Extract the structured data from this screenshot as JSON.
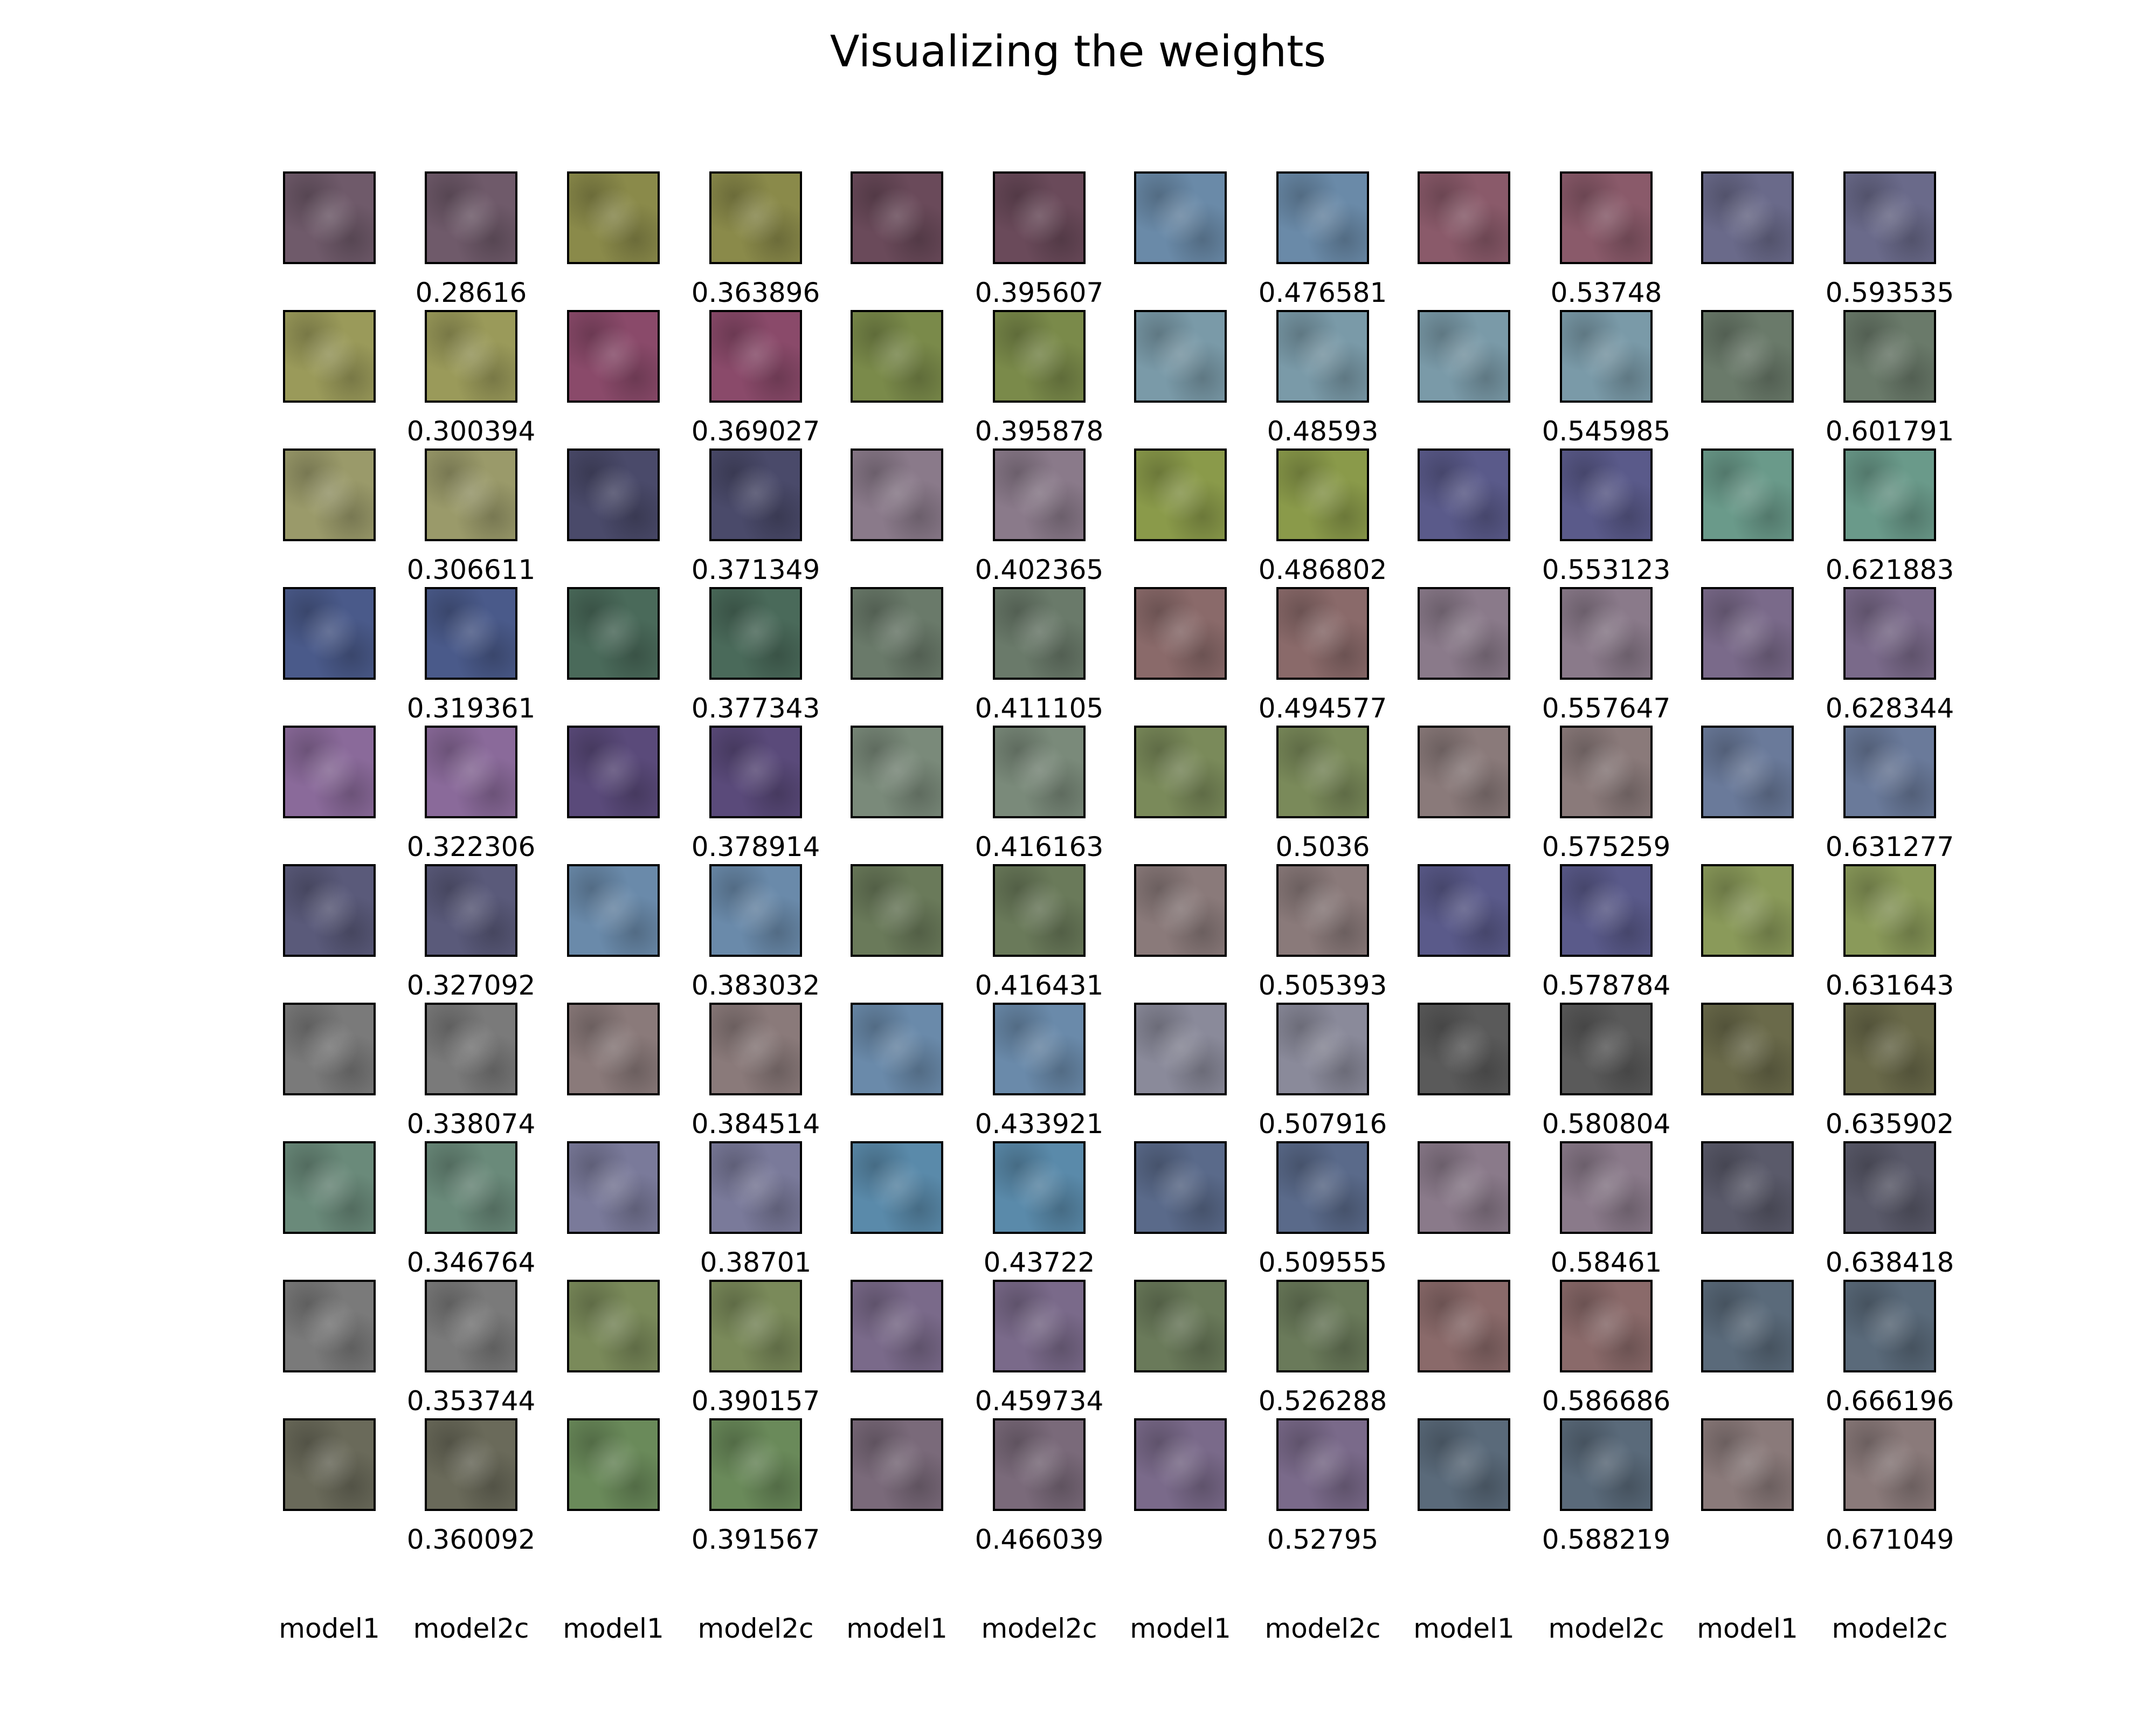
{
  "title": "Visualizing the weights",
  "column_labels": [
    "model1",
    "model2c",
    "model1",
    "model2c",
    "model1",
    "model2c",
    "model1",
    "model2c",
    "model1",
    "model2c",
    "model1",
    "model2c"
  ],
  "score_columns": [
    [
      "0.28616",
      "0.300394",
      "0.306611",
      "0.319361",
      "0.322306",
      "0.327092",
      "0.338074",
      "0.346764",
      "0.353744",
      "0.360092"
    ],
    [
      "0.363896",
      "0.369027",
      "0.371349",
      "0.377343",
      "0.378914",
      "0.383032",
      "0.384514",
      "0.38701",
      "0.390157",
      "0.391567"
    ],
    [
      "0.395607",
      "0.395878",
      "0.402365",
      "0.411105",
      "0.416163",
      "0.416431",
      "0.433921",
      "0.43722",
      "0.459734",
      "0.466039"
    ],
    [
      "0.476581",
      "0.48593",
      "0.486802",
      "0.494577",
      "0.5036",
      "0.505393",
      "0.507916",
      "0.509555",
      "0.526288",
      "0.52795"
    ],
    [
      "0.53748",
      "0.545985",
      "0.553123",
      "0.557647",
      "0.575259",
      "0.578784",
      "0.580804",
      "0.58461",
      "0.586686",
      "0.588219"
    ],
    [
      "0.593535",
      "0.601791",
      "0.621883",
      "0.628344",
      "0.631277",
      "0.631643",
      "0.635902",
      "0.638418",
      "0.666196",
      "0.671049"
    ]
  ],
  "tile_colors": [
    [
      "#6f5a6a",
      "#8a8a4a",
      "#6a4a5a",
      "#6a8aa8",
      "#8a5a6a",
      "#6a6a8a"
    ],
    [
      "#9a9a5a",
      "#8a4a6a",
      "#7a8a4a",
      "#7a9aa8",
      "#7a9aa8",
      "#6a7a6a"
    ],
    [
      "#9a9a6a",
      "#4a4a6a",
      "#8a7a8a",
      "#8a9a4a",
      "#5a5a8a",
      "#6a9a8a"
    ],
    [
      "#4a5a8a",
      "#4a6a5a",
      "#6a7a6a",
      "#8a6a6a",
      "#8a7a8a",
      "#7a6a8a"
    ],
    [
      "#8a6a9a",
      "#5a4a7a",
      "#7a8a7a",
      "#7a8a5a",
      "#8a7a7a",
      "#6a7a9a"
    ],
    [
      "#5a5a7a",
      "#6a8aaa",
      "#6a7a5a",
      "#8a7a7a",
      "#5a5a8a",
      "#8a9a5a"
    ],
    [
      "#7a7a7a",
      "#8a7a7a",
      "#6a8aaa",
      "#8a8a9a",
      "#5a5a5a",
      "#6a6a4a"
    ],
    [
      "#6a8a7a",
      "#7a7a9a",
      "#5a8aaa",
      "#5a6a8a",
      "#8a7a8a",
      "#5a5a6a"
    ],
    [
      "#7a7a7a",
      "#7a8a5a",
      "#7a6a8a",
      "#6a7a5a",
      "#8a6a6a",
      "#5a6a7a"
    ],
    [
      "#6a6a5a",
      "#6a8a5a",
      "#7a6a7a",
      "#7a6a8a",
      "#5a6a7a",
      "#8a7a7a"
    ]
  ]
}
